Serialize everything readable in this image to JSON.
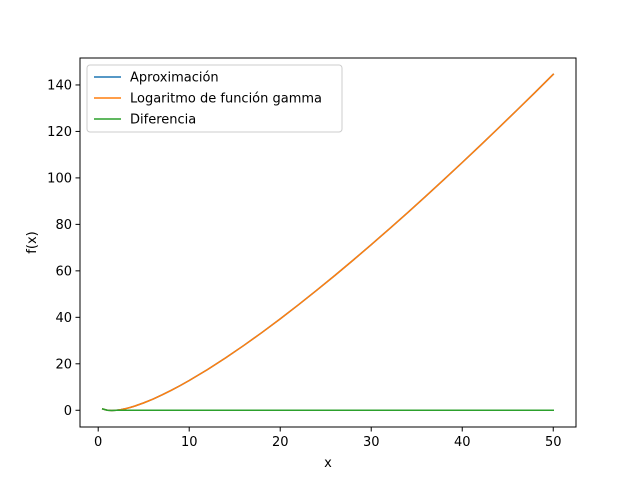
{
  "chart_data": {
    "type": "line",
    "title": "",
    "xlabel": "x",
    "ylabel": "f(x)",
    "xlim": [
      -2.0,
      52.5
    ],
    "ylim": [
      -7.2,
      151.6
    ],
    "xticks": [
      0,
      10,
      20,
      30,
      40,
      50
    ],
    "yticks": [
      0,
      20,
      40,
      60,
      80,
      100,
      120,
      140
    ],
    "grid": false,
    "legend_position": "top-left",
    "x": [
      0.5,
      1,
      1.5,
      2,
      2.5,
      3,
      3.5,
      4,
      5,
      6,
      7,
      8,
      9,
      10,
      12,
      14,
      16,
      18,
      20,
      22,
      24,
      26,
      28,
      30,
      32,
      34,
      36,
      38,
      40,
      42,
      44,
      46,
      48,
      50
    ],
    "series": [
      {
        "name": "Aproximación",
        "color": "#1f77b4",
        "values": [
          0.57,
          0.0,
          -0.12,
          0.0,
          0.28,
          0.69,
          1.2,
          1.79,
          3.18,
          4.79,
          6.58,
          8.53,
          10.6,
          12.8,
          17.5,
          22.55,
          27.9,
          33.5,
          39.34,
          45.38,
          51.61,
          58.0,
          64.56,
          71.26,
          78.09,
          85.05,
          92.14,
          99.33,
          106.63,
          114.03,
          121.53,
          129.12,
          136.79,
          144.57
        ]
      },
      {
        "name": "Logaritmo de función gamma",
        "color": "#ff7f0e",
        "values": [
          0.57,
          0.0,
          -0.12,
          0.0,
          0.28,
          0.69,
          1.2,
          1.79,
          3.18,
          4.79,
          6.58,
          8.53,
          10.6,
          12.8,
          17.5,
          22.55,
          27.9,
          33.5,
          39.34,
          45.38,
          51.61,
          58.0,
          64.56,
          71.26,
          78.09,
          85.05,
          92.14,
          99.33,
          106.63,
          114.03,
          121.53,
          129.12,
          136.79,
          144.57
        ]
      },
      {
        "name": "Diferencia",
        "color": "#2ca02c",
        "values": [
          0.57,
          0.0,
          -0.12,
          0.0,
          0.0,
          0.0,
          0.0,
          0.0,
          0.0,
          0.0,
          0.0,
          0.0,
          0.0,
          0.0,
          0.0,
          0.0,
          0.0,
          0.0,
          0.0,
          0.0,
          0.0,
          0.0,
          0.0,
          0.0,
          0.0,
          0.0,
          0.0,
          0.0,
          0.0,
          0.0,
          0.0,
          0.0,
          0.0,
          0.0
        ]
      }
    ]
  }
}
